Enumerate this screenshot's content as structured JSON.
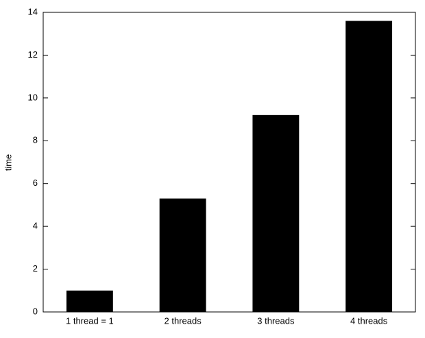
{
  "chart_data": {
    "type": "bar",
    "y_label": "time",
    "categories": [
      "1 thread = 1",
      "2 threads",
      "3 threads",
      "4 threads"
    ],
    "values": [
      1.0,
      5.3,
      9.2,
      13.6
    ],
    "color": "#000000",
    "ylim": [
      0,
      14
    ],
    "yticks": [
      0,
      2,
      4,
      6,
      8,
      10,
      12,
      14
    ],
    "grid": false
  }
}
